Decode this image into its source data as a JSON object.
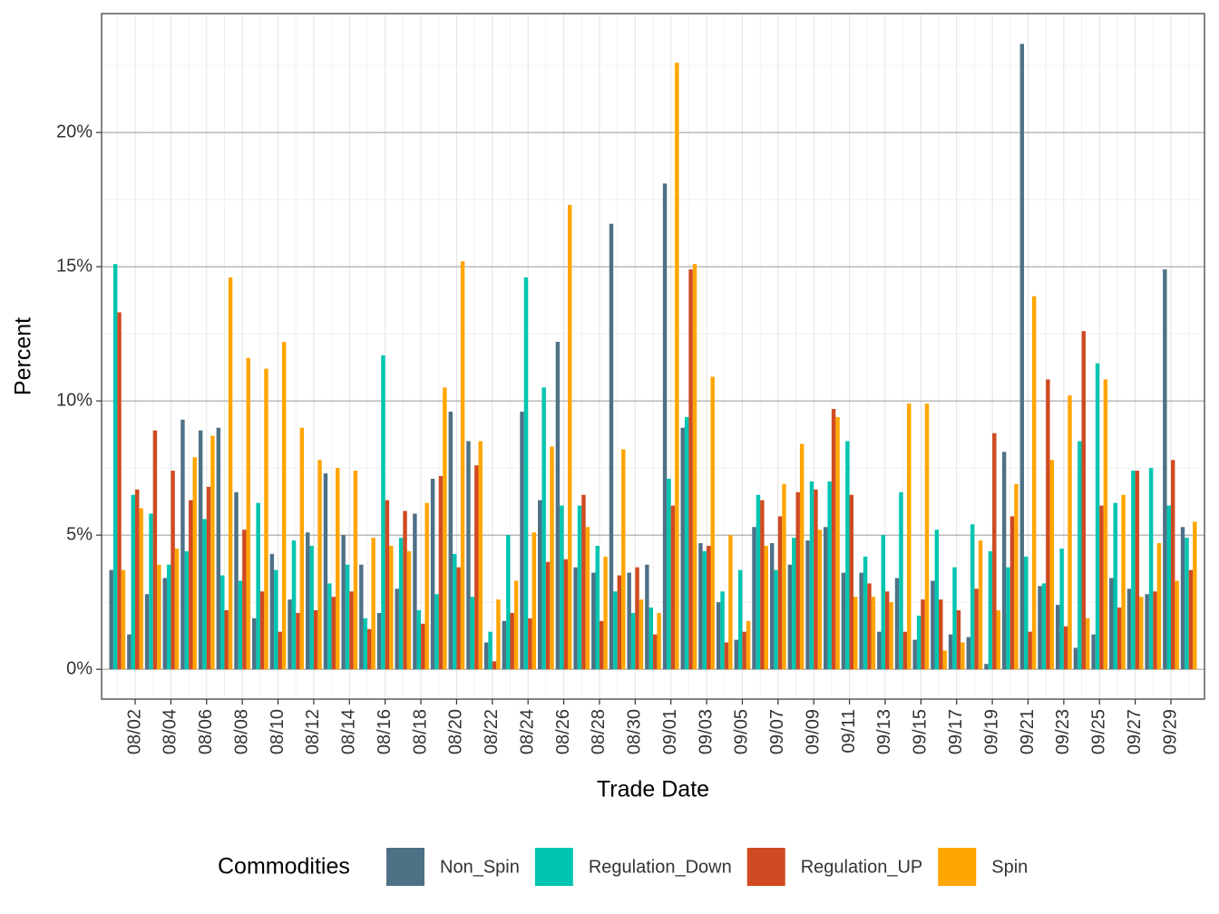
{
  "chart_data": {
    "type": "bar",
    "x_label": "Trade Date",
    "y_label": "Percent",
    "legend_title": "Commodities",
    "legend_position": "bottom",
    "grid": true,
    "categories": [
      null,
      "08/02",
      null,
      "08/04",
      null,
      "08/06",
      null,
      "08/08",
      null,
      "08/10",
      null,
      "08/12",
      null,
      "08/14",
      null,
      "08/16",
      null,
      "08/18",
      null,
      "08/20",
      null,
      "08/22",
      null,
      "08/24",
      null,
      "08/26",
      null,
      "08/28",
      null,
      "08/30",
      null,
      "09/01",
      null,
      "09/03",
      null,
      "09/05",
      null,
      "09/07",
      null,
      "09/09",
      null,
      "09/11",
      null,
      "09/13",
      null,
      "09/15",
      null,
      "09/17",
      null,
      "09/19",
      null,
      "09/21",
      null,
      "09/23",
      null,
      "09/25",
      null,
      "09/27",
      null,
      "09/29",
      null
    ],
    "ylim": [
      -1.11,
      24.43
    ],
    "yticks": [
      {
        "value": 0,
        "label": "0%"
      },
      {
        "value": 5,
        "label": "5%"
      },
      {
        "value": 10,
        "label": "10%"
      },
      {
        "value": 15,
        "label": "15%"
      },
      {
        "value": 20,
        "label": "20%"
      }
    ],
    "series": [
      {
        "name": "Non_Spin",
        "color": "#4e7186",
        "values": [
          3.7,
          1.3,
          2.8,
          3.4,
          9.3,
          8.9,
          9.0,
          6.6,
          1.9,
          4.3,
          2.6,
          5.1,
          7.3,
          5.0,
          3.9,
          2.1,
          3.0,
          5.8,
          7.1,
          9.6,
          8.5,
          1.0,
          1.8,
          9.6,
          6.3,
          12.2,
          3.8,
          3.6,
          16.6,
          3.6,
          3.9,
          18.1,
          9.0,
          4.7,
          2.5,
          1.1,
          5.3,
          4.7,
          3.9,
          4.8,
          5.3,
          3.6,
          3.6,
          1.4,
          3.4,
          1.1,
          3.3,
          1.3,
          1.2,
          0.2,
          8.1,
          23.3,
          3.1,
          2.4,
          0.8,
          1.3,
          3.4,
          3.0,
          2.8,
          14.9,
          5.3
        ]
      },
      {
        "name": "Regulation_Down",
        "color": "#00c5b0",
        "values": [
          15.1,
          6.5,
          5.8,
          3.9,
          4.4,
          5.6,
          3.5,
          3.3,
          6.2,
          3.7,
          4.8,
          4.6,
          3.2,
          3.9,
          1.9,
          11.7,
          4.9,
          2.2,
          2.8,
          4.3,
          2.7,
          1.4,
          5.0,
          14.6,
          10.5,
          6.1,
          6.1,
          4.6,
          2.9,
          2.1,
          2.3,
          7.1,
          9.4,
          4.4,
          2.9,
          3.7,
          6.5,
          3.7,
          4.9,
          7.0,
          7.0,
          8.5,
          4.2,
          5.0,
          6.6,
          2.0,
          5.2,
          3.8,
          5.4,
          4.4,
          3.8,
          4.2,
          3.2,
          4.5,
          8.5,
          11.4,
          6.2,
          7.4,
          7.5,
          6.1,
          4.9
        ]
      },
      {
        "name": "Regulation_UP",
        "color": "#d04a22",
        "values": [
          13.3,
          6.7,
          8.9,
          7.4,
          6.3,
          6.8,
          2.2,
          5.2,
          2.9,
          1.4,
          2.1,
          2.2,
          2.7,
          2.9,
          1.5,
          6.3,
          5.9,
          1.7,
          7.2,
          3.8,
          7.6,
          0.3,
          2.1,
          1.9,
          4.0,
          4.1,
          6.5,
          1.8,
          3.5,
          3.8,
          1.3,
          6.1,
          14.9,
          4.6,
          1.0,
          1.4,
          6.3,
          5.7,
          6.6,
          6.7,
          9.7,
          6.5,
          3.2,
          2.9,
          1.4,
          2.6,
          2.6,
          2.2,
          3.0,
          8.8,
          5.7,
          1.4,
          10.8,
          1.6,
          12.6,
          6.1,
          2.3,
          7.4,
          2.9,
          7.8,
          3.7
        ]
      },
      {
        "name": "Spin",
        "color": "#ffa500",
        "values": [
          3.7,
          6.0,
          3.9,
          4.5,
          7.9,
          8.7,
          14.6,
          11.6,
          11.2,
          12.2,
          9.0,
          7.8,
          7.5,
          7.4,
          4.9,
          4.6,
          4.4,
          6.2,
          10.5,
          15.2,
          8.5,
          2.6,
          3.3,
          5.1,
          8.3,
          17.3,
          5.3,
          4.2,
          8.2,
          2.6,
          2.1,
          22.6,
          15.1,
          10.9,
          5.0,
          1.8,
          4.6,
          6.9,
          8.4,
          5.2,
          9.4,
          2.7,
          2.7,
          2.5,
          9.9,
          9.9,
          0.7,
          1.0,
          4.8,
          2.2,
          6.9,
          13.9,
          7.8,
          10.2,
          1.9,
          10.8,
          6.5,
          2.7,
          4.7,
          3.3,
          5.5
        ]
      }
    ]
  }
}
